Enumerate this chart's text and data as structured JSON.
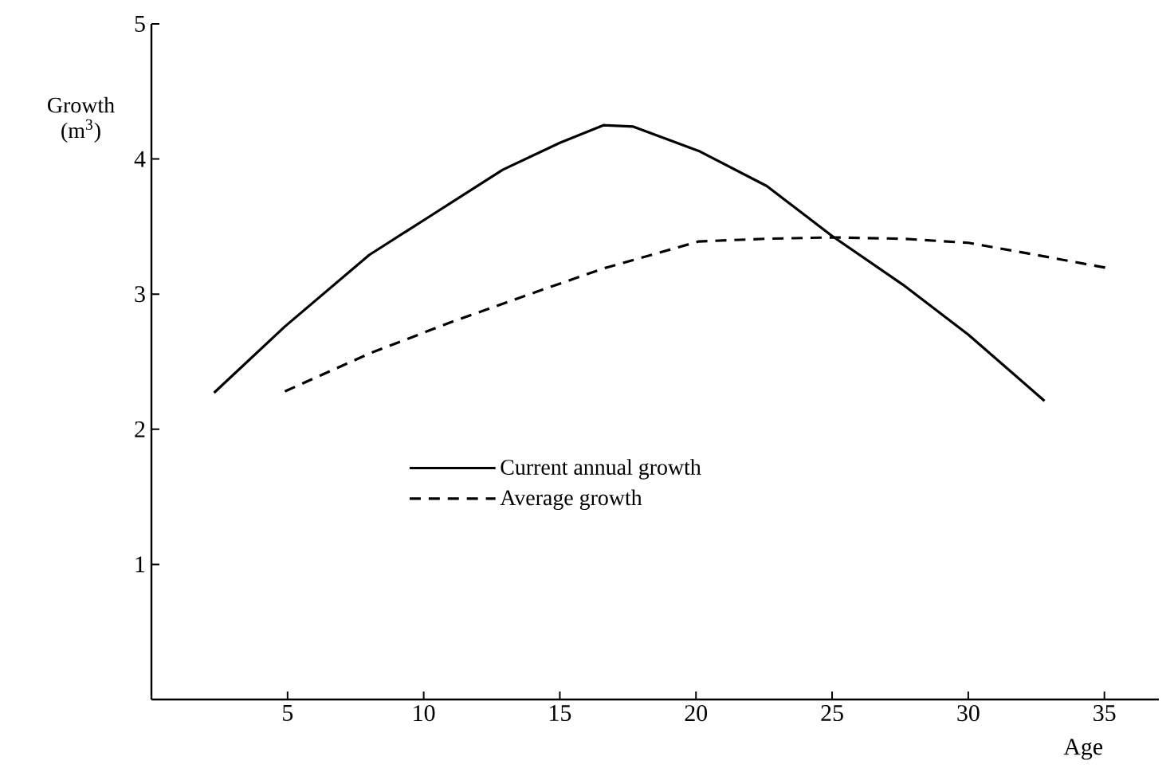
{
  "chart_data": {
    "type": "line",
    "xlabel": "Age",
    "ylabel": "Growth (m$^{3}$)",
    "xlim": [
      0,
      37
    ],
    "ylim": [
      0,
      5
    ],
    "xticks": [
      5,
      10,
      15,
      20,
      25,
      30,
      35
    ],
    "yticks": [
      1,
      2,
      3,
      4,
      5
    ],
    "grid": false,
    "legend": "left",
    "marker": "none",
    "series": [
      {
        "name": "Current annual growth",
        "color": "#000000",
        "line_style": "solid",
        "x": [
          2.3,
          4.9,
          8.0,
          10.1,
          12.9,
          15.0,
          16.6,
          17.7,
          20.1,
          22.6,
          25.0,
          27.6,
          30.0,
          32.8
        ],
        "values": [
          2.27,
          2.76,
          3.29,
          3.56,
          3.92,
          4.12,
          4.25,
          4.24,
          4.06,
          3.8,
          3.43,
          3.07,
          2.7,
          2.21
        ]
      },
      {
        "name": "Average growth",
        "color": "#000000",
        "line_style": "dashed",
        "x": [
          4.9,
          8.0,
          11.1,
          13.9,
          16.6,
          20.1,
          22.6,
          25.0,
          27.6,
          30.0,
          32.5,
          35.2
        ],
        "values": [
          2.28,
          2.56,
          2.8,
          3.0,
          3.19,
          3.39,
          3.41,
          3.42,
          3.41,
          3.38,
          3.29,
          3.19
        ]
      }
    ]
  }
}
